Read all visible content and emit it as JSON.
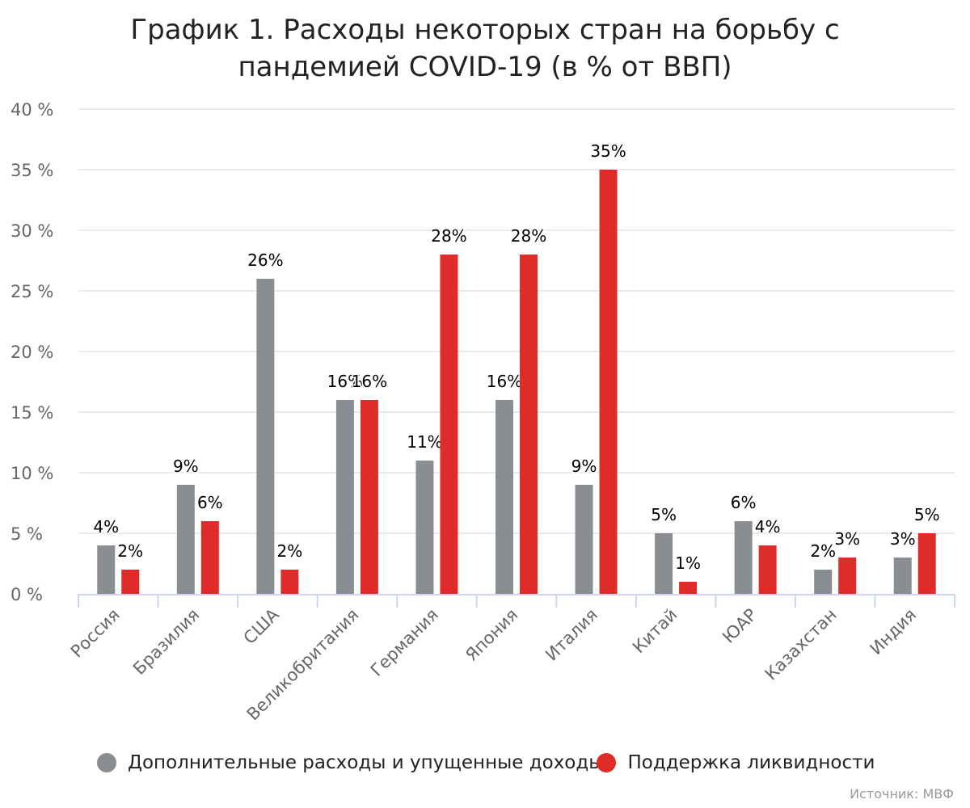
{
  "chart_data": {
    "type": "bar",
    "title": "График 1. Расходы некоторых стран на борьбу с пандемией COVID-19 (в % от ВВП)",
    "title_lines": [
      "График 1. Расходы некоторых стран на борьбу с",
      "пандемией COVID-19 (в % от ВВП)"
    ],
    "categories": [
      "Россия",
      "Бразилия",
      "США",
      "Великобритания",
      "Германия",
      "Япония",
      "Италия",
      "Китай",
      "ЮАР",
      "Казахстан",
      "Индия"
    ],
    "series": [
      {
        "name": "Дополнительные расходы и упущенные доходы",
        "color": "#8a8e93",
        "values": [
          4,
          9,
          26,
          16,
          11,
          16,
          9,
          5,
          6,
          2,
          3
        ],
        "labels": [
          "4%",
          "9%",
          "26%",
          "16%",
          "11%",
          "16%",
          "9%",
          "5%",
          "6%",
          "2%",
          "3%"
        ]
      },
      {
        "name": "Поддержка ликвидности",
        "color": "#e02b2b",
        "values": [
          2,
          6,
          2,
          16,
          28,
          28,
          35,
          1,
          4,
          3,
          5
        ],
        "labels": [
          "2%",
          "6%",
          "2%",
          "16%",
          "28%",
          "28%",
          "35%",
          "1%",
          "4%",
          "3%",
          "5%"
        ]
      }
    ],
    "yticks": [
      0,
      5,
      10,
      15,
      20,
      25,
      30,
      35,
      40
    ],
    "ytick_labels": [
      "0 %",
      "5 %",
      "10 %",
      "15 %",
      "20 %",
      "25 %",
      "30 %",
      "35 %",
      "40 %"
    ],
    "ylim": [
      0,
      40
    ],
    "xlabel": "",
    "ylabel": "",
    "grid": true,
    "legend_position": "bottom",
    "source": "Источник: МВФ",
    "colors": {
      "grid": "#e3e3e3",
      "axis": "#ccd6eb",
      "tick_text": "#666666",
      "label_text": "#000000"
    }
  }
}
